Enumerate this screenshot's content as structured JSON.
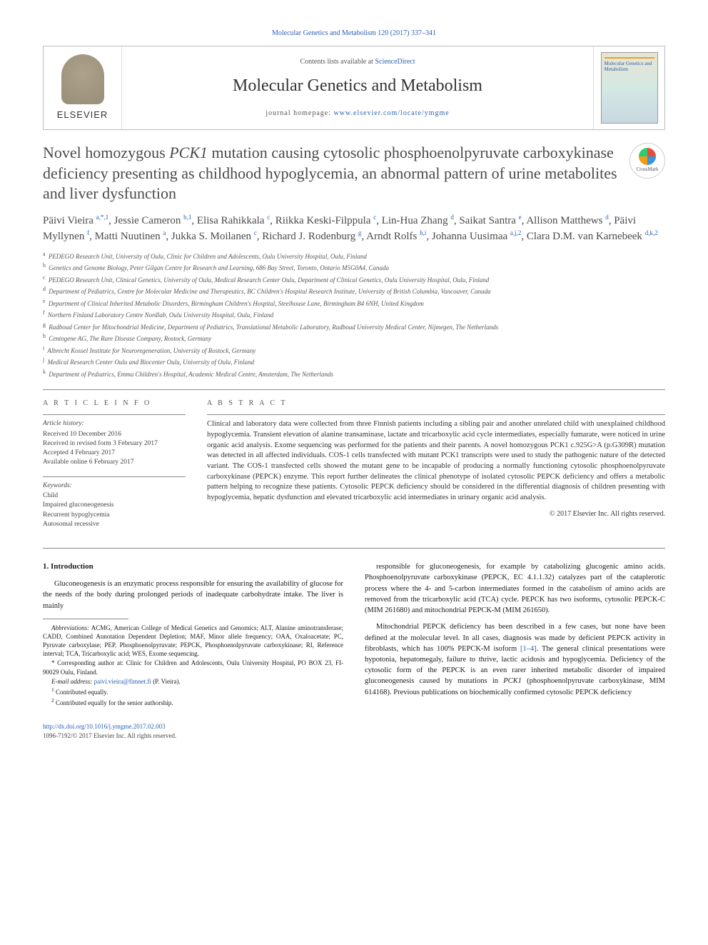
{
  "top_link": {
    "citation": "Molecular Genetics and Metabolism 120 (2017) 337–341"
  },
  "header": {
    "contents_prefix": "Contents lists available at ",
    "contents_link": "ScienceDirect",
    "journal_name": "Molecular Genetics and Metabolism",
    "homepage_prefix": "journal homepage: ",
    "homepage_url": "www.elsevier.com/locate/ymgme",
    "elsevier_label": "ELSEVIER",
    "cover_title": "Molecular Genetics and Metabolism"
  },
  "crossmark_label": "CrossMark",
  "title": "Novel homozygous PCK1 mutation causing cytosolic phosphoenolpyruvate carboxykinase deficiency presenting as childhood hypoglycemia, an abnormal pattern of urine metabolites and liver dysfunction",
  "authors_html": "Päivi Vieira <sup>a,*,1</sup>, Jessie Cameron <sup>b,1</sup>, Elisa Rahikkala <sup>c</sup>, Riikka Keski-Filppula <sup>c</sup>, Lin-Hua Zhang <sup>d</sup>, Saikat Santra <sup>e</sup>, Allison Matthews <sup>d</sup>, Päivi Myllynen <sup>f</sup>, Matti Nuutinen <sup>a</sup>, Jukka S. Moilanen <sup>c</sup>, Richard J. Rodenburg <sup>g</sup>, Arndt Rolfs <sup>h,i</sup>, Johanna Uusimaa <sup>a,j,2</sup>, Clara D.M. van Karnebeek <sup>d,k,2</sup>",
  "affiliations": [
    {
      "sup": "a",
      "text": "PEDEGO Research Unit, University of Oulu, Clinic for Children and Adolescents, Oulu University Hospital, Oulu, Finland"
    },
    {
      "sup": "b",
      "text": "Genetics and Genome Biology, Peter Gilgan Centre for Research and Learning, 686 Bay Street, Toronto, Ontario M5G0A4, Canada"
    },
    {
      "sup": "c",
      "text": "PEDEGO Research Unit, Clinical Genetics, University of Oulu, Medical Research Center Oulu, Department of Clinical Genetics, Oulu University Hospital, Oulu, Finland"
    },
    {
      "sup": "d",
      "text": "Department of Pediatrics, Centre for Molecular Medicine and Therapeutics, BC Children's Hospital Research Institute, University of British Columbia, Vancouver, Canada"
    },
    {
      "sup": "e",
      "text": "Department of Clinical Inherited Metabolic Disorders, Birmingham Children's Hospital, Steelhouse Lane, Birmingham B4 6NH, United Kingdom"
    },
    {
      "sup": "f",
      "text": "Northern Finland Laboratory Centre Nordlab, Oulu University Hospital, Oulu, Finland"
    },
    {
      "sup": "g",
      "text": "Radboud Center for Mitochondrial Medicine, Department of Pediatrics, Translational Metabolic Laboratory, Radboud University Medical Center, Nijmegen, The Netherlands"
    },
    {
      "sup": "h",
      "text": "Centogene AG, The Rare Disease Company, Rostock, Germany"
    },
    {
      "sup": "i",
      "text": "Albrecht Kossel Institute for Neuroregeneration, University of Rostock, Germany"
    },
    {
      "sup": "j",
      "text": "Medical Research Center Oulu and Biocenter Oulu, University of Oulu, Finland"
    },
    {
      "sup": "k",
      "text": "Department of Pediatrics, Emma Children's Hospital, Academic Medical Centre, Amsterdam, The Netherlands"
    }
  ],
  "article_info": {
    "heading": "A R T I C L E   I N F O",
    "history_label": "Article history:",
    "history": [
      "Received 10 December 2016",
      "Received in revised form 3 February 2017",
      "Accepted 4 February 2017",
      "Available online 6 February 2017"
    ],
    "keywords_label": "Keywords:",
    "keywords": [
      "Child",
      "Impaired gluconeogenesis",
      "Recurrent hypoglycemia",
      "Autosomal recessive"
    ]
  },
  "abstract": {
    "heading": "A B S T R A C T",
    "text": "Clinical and laboratory data were collected from three Finnish patients including a sibling pair and another unrelated child with unexplained childhood hypoglycemia. Transient elevation of alanine transaminase, lactate and tricarboxylic acid cycle intermediates, especially fumarate, were noticed in urine organic acid analysis. Exome sequencing was performed for the patients and their parents. A novel homozygous PCK1 c.925G>A (p.G309R) mutation was detected in all affected individuals. COS-1 cells transfected with mutant PCK1 transcripts were used to study the pathogenic nature of the detected variant. The COS-1 transfected cells showed the mutant gene to be incapable of producing a normally functioning cytosolic phosphoenolpyruvate carboxykinase (PEPCK) enzyme. This report further delineates the clinical phenotype of isolated cytosolic PEPCK deficiency and offers a metabolic pattern helping to recognize these patients. Cytosolic PEPCK deficiency should be considered in the differential diagnosis of children presenting with hypoglycemia, hepatic dysfunction and elevated tricarboxylic acid intermediates in urinary organic acid analysis.",
    "copyright": "© 2017 Elsevier Inc. All rights reserved."
  },
  "body": {
    "section_number": "1.",
    "section_title": "Introduction",
    "left_paras": [
      "Gluconeogenesis is an enzymatic process responsible for ensuring the availability of glucose for the needs of the body during prolonged periods of inadequate carbohydrate intake. The liver is mainly"
    ],
    "right_paras": [
      "responsible for gluconeogenesis, for example by catabolizing glucogenic amino acids. Phosphoenolpyruvate carboxykinase (PEPCK, EC 4.1.1.32) catalyzes part of the cataplerotic process where the 4- and 5-carbon intermediates formed in the catabolism of amino acids are removed from the tricarboxylic acid (TCA) cycle. PEPCK has two isoforms, cytosolic PEPCK-C (MIM 261680) and mitochondrial PEPCK-M (MIM 261650).",
      "Mitochondrial PEPCK deficiency has been described in a few cases, but none have been defined at the molecular level. In all cases, diagnosis was made by deficient PEPCK activity in fibroblasts, which has 100% PEPCK-M isoform [1–4]. The general clinical presentations were hypotonia, hepatomegaly, failure to thrive, lactic acidosis and hypoglycemia. Deficiency of the cytosolic form of the PEPCK is an even rarer inherited metabolic disorder of impaired gluconeogenesis caused by mutations in PCK1 (phosphoenolpyruvate carboxykinase, MIM 614168). Previous publications on biochemically confirmed cytosolic PEPCK deficiency"
    ],
    "ref_link": "[1–4]"
  },
  "footnotes": {
    "abbrev_label": "Abbreviations:",
    "abbrev_text": " ACMG, American College of Medical Genetics and Genomics; ALT, Alanine aminotransferase; CADD, Combined Annotation Dependent Depletion; MAF, Minor allele frequency; OAA, Oxaloacetate; PC, Pyruvate carboxylase; PEP, Phosphoenolpyruvate; PEPCK, Phosphoenolpyruvate carboxykinase; RI, Reference interval; TCA, Tricarboxylic acid; WES, Exome sequencing.",
    "corr_label": "* ",
    "corr_text": "Corresponding author at: Clinic for Children and Adolescents, Oulu University Hospital, PO BOX 23, FI-90029 Oulu, Finland.",
    "email_label": "E-mail address: ",
    "email": "paivi.vieira@fimnet.fi",
    "email_suffix": " (P. Vieira).",
    "note1": "Contributed equally.",
    "note2": "Contributed equally for the senior authorship."
  },
  "footer": {
    "doi": "http://dx.doi.org/10.1016/j.ymgme.2017.02.003",
    "issn_line": "1096-7192/© 2017 Elsevier Inc. All rights reserved."
  },
  "colors": {
    "link": "#2a5fb0",
    "text": "#1a1a1a",
    "heading_gray": "#4a4a4a",
    "rule": "#888888"
  }
}
